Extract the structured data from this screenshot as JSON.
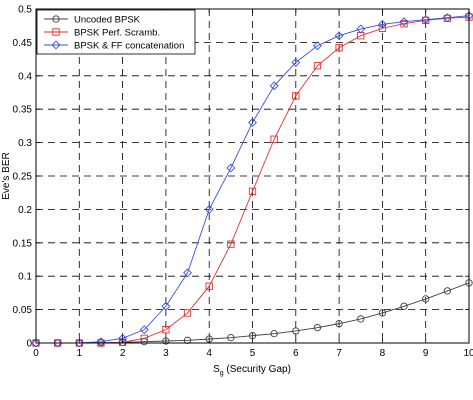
{
  "chart_data": {
    "type": "line",
    "title": "",
    "xlabel": "S_g (Security Gap)",
    "xlabel_main": "S",
    "xlabel_sub": "g",
    "xlabel_rest": " (Security Gap)",
    "ylabel": "Eve's BER",
    "xlim": [
      0,
      10
    ],
    "ylim": [
      0,
      0.5
    ],
    "xticks": [
      0,
      1,
      2,
      3,
      4,
      5,
      6,
      7,
      8,
      9,
      10
    ],
    "yticks": [
      0,
      0.05,
      0.1,
      0.15,
      0.2,
      0.25,
      0.3,
      0.35,
      0.4,
      0.45,
      0.5
    ],
    "ytick_labels": [
      "0",
      "0.05",
      "0.1",
      "0.15",
      "0.2",
      "0.25",
      "0.3",
      "0.35",
      "0.4",
      "0.45",
      "0.5"
    ],
    "grid": true,
    "legend_position": "top-left",
    "x": [
      0,
      0.5,
      1,
      1.5,
      2,
      2.5,
      3,
      3.5,
      4,
      4.5,
      5,
      5.5,
      6,
      6.5,
      7,
      7.5,
      8,
      8.5,
      9,
      9.5,
      10
    ],
    "series": [
      {
        "name": "Uncoded BPSK",
        "color": "#404040",
        "marker": "circle",
        "values": [
          0.0,
          0.0,
          0.0,
          0.0005,
          0.001,
          0.002,
          0.003,
          0.004,
          0.006,
          0.008,
          0.011,
          0.014,
          0.018,
          0.023,
          0.029,
          0.036,
          0.045,
          0.055,
          0.066,
          0.078,
          0.09
        ]
      },
      {
        "name": "BPSK Perf. Scramb.",
        "color": "#e03030",
        "marker": "square",
        "values": [
          0.0,
          0.0,
          0.0,
          0.0,
          0.001,
          0.007,
          0.02,
          0.045,
          0.085,
          0.148,
          0.227,
          0.305,
          0.37,
          0.415,
          0.442,
          0.46,
          0.471,
          0.478,
          0.483,
          0.486,
          0.488
        ]
      },
      {
        "name": "BPSK & FF concatenation",
        "color": "#3a4fd8",
        "marker": "diamond",
        "values": [
          0.0,
          0.0,
          0.0,
          0.002,
          0.007,
          0.02,
          0.055,
          0.105,
          0.2,
          0.262,
          0.33,
          0.385,
          0.42,
          0.445,
          0.46,
          0.47,
          0.477,
          0.481,
          0.484,
          0.487,
          0.49
        ]
      }
    ]
  }
}
